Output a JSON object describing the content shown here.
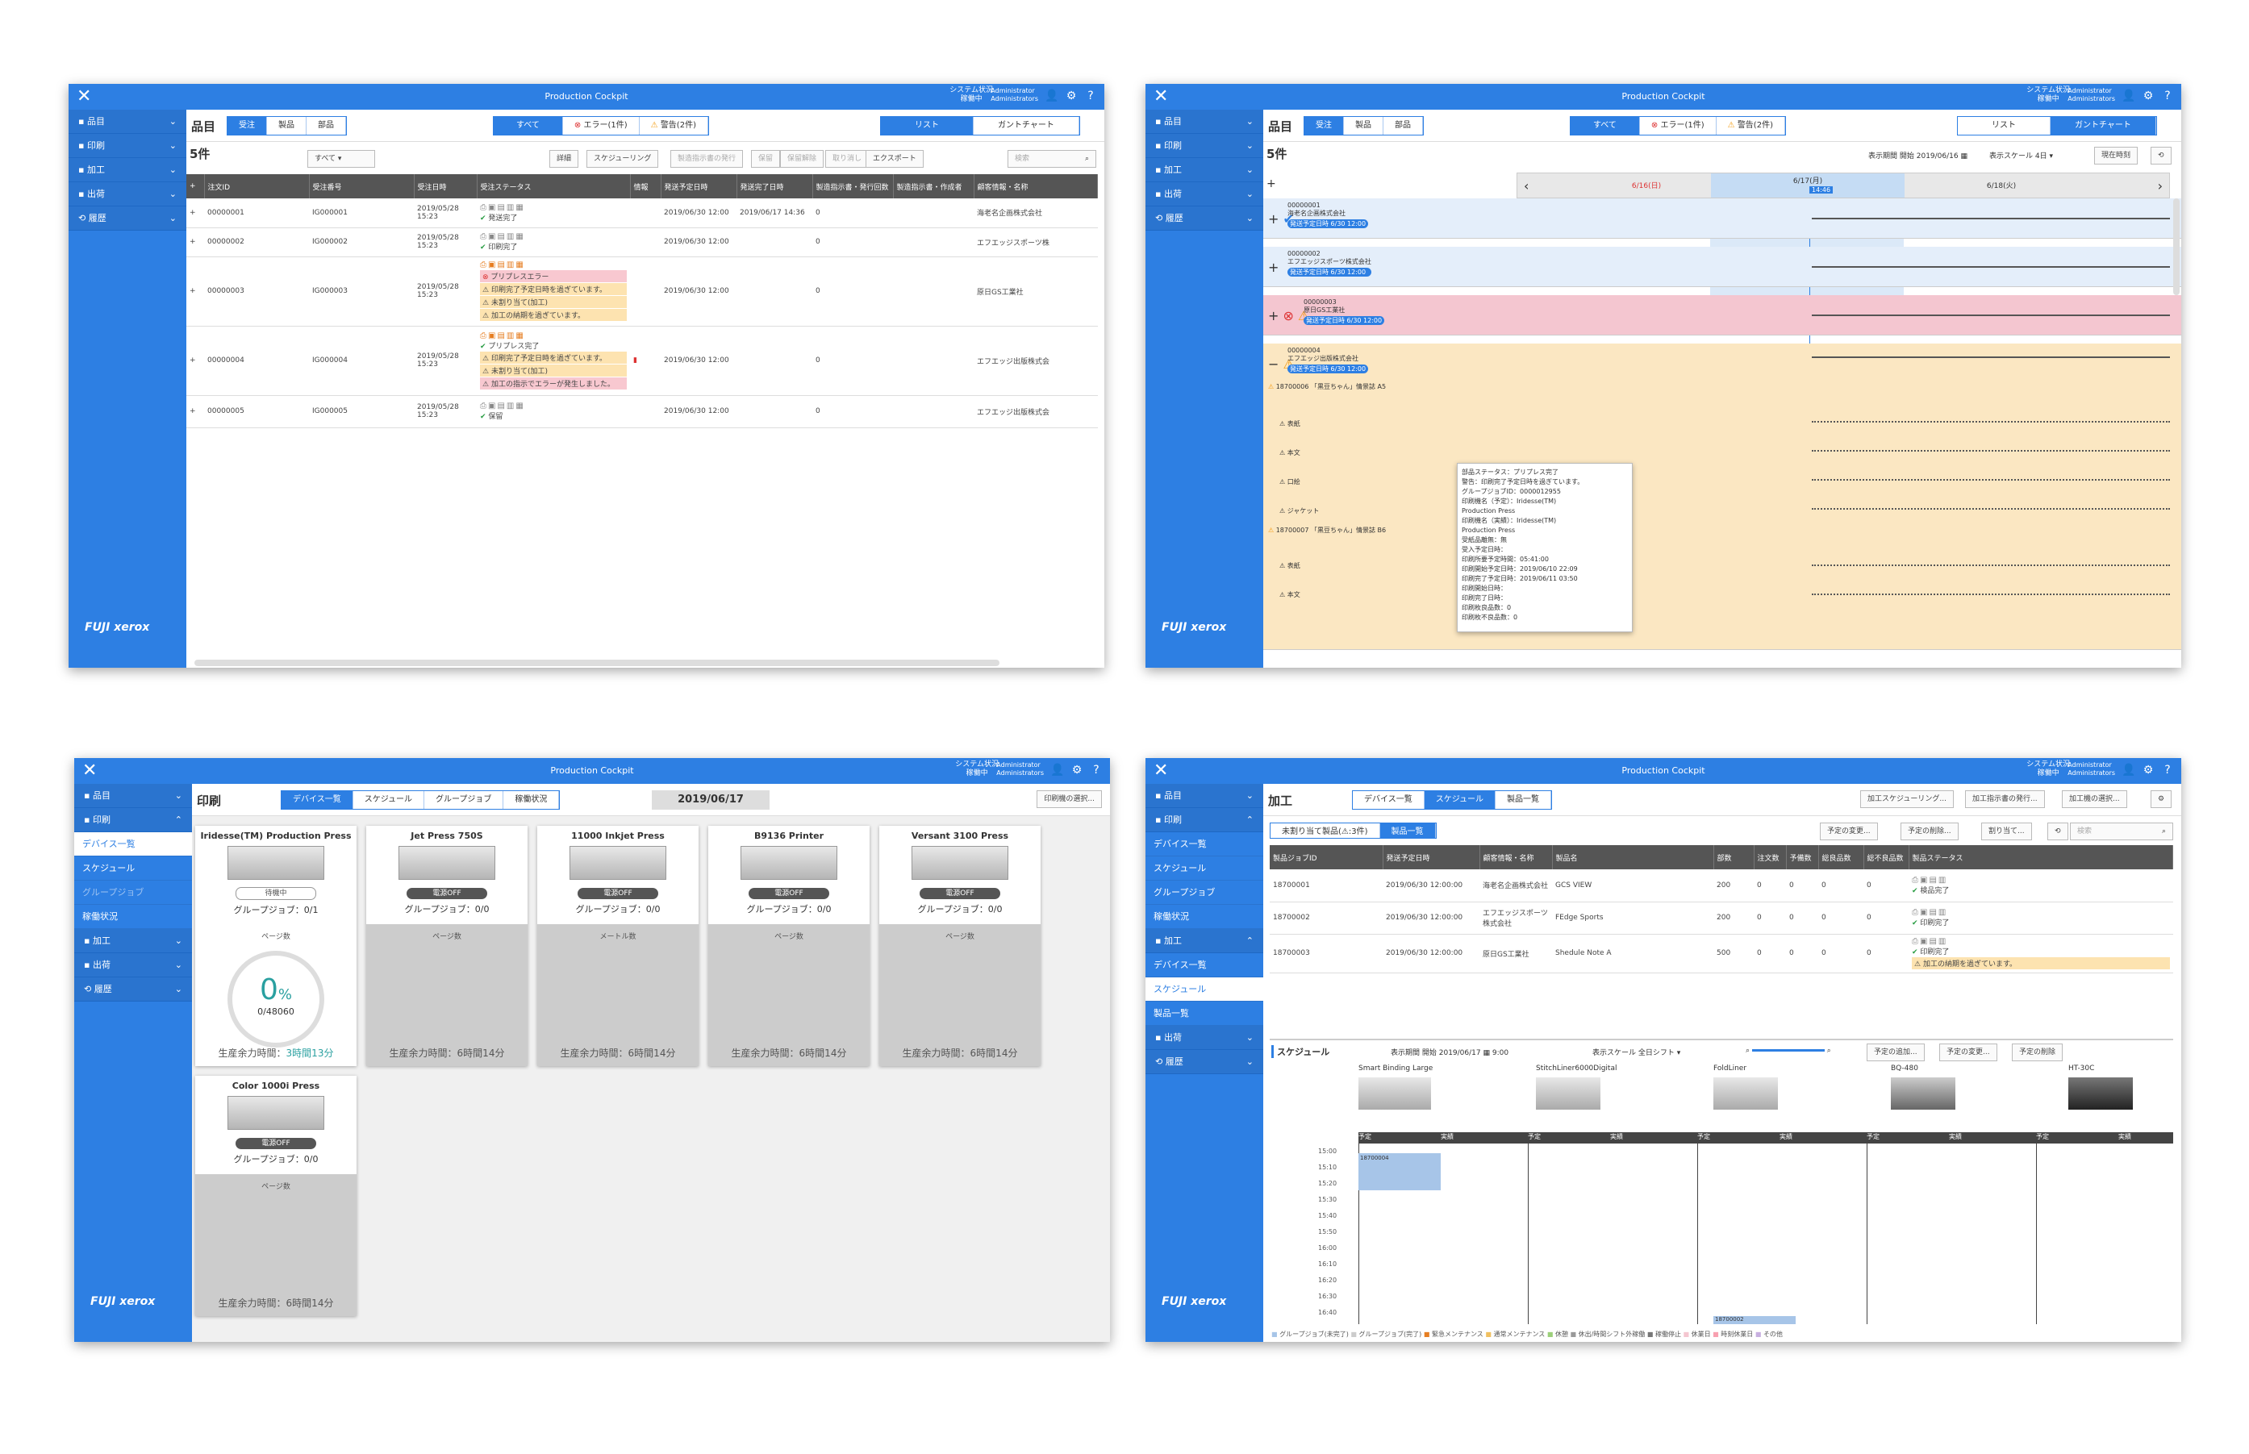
{
  "app": {
    "title": "Production Cockpit",
    "sys_status": "システム状況",
    "sys_state": "稼働中",
    "user": "Administrator",
    "role": "Administrators",
    "brand": "FUJI xerox",
    "accent": "#2d7fe3"
  },
  "nav": {
    "items": "品目",
    "print": "印刷",
    "finish": "加工",
    "ship": "出荷",
    "history": "履歴"
  },
  "w1": {
    "title": "品目",
    "tabs": [
      "受注",
      "製品",
      "部品"
    ],
    "filters": [
      "すべて",
      "エラー(1件)",
      "警告(2件)"
    ],
    "views": [
      "リスト",
      "ガントチャート"
    ],
    "count": "5件",
    "select": "すべて",
    "tools": [
      "詳細",
      "スケジューリング",
      "製造指示書の発行",
      "保留",
      "保留解除",
      "取り消し",
      "エクスポート"
    ],
    "search": "検索",
    "cols": [
      "注文ID",
      "受注番号",
      "受注日時",
      "受注ステータス",
      "情報",
      "発送予定日時",
      "発送完了日時",
      "製造指示書・発行回数",
      "製造指示書・作成者",
      "顧客情報・名称"
    ],
    "rows": [
      {
        "id": "00000001",
        "no": "IG000001",
        "date": "2019/05/28 15:23",
        "st": [
          "発送完了"
        ],
        "ship": "2019/06/30 12:00",
        "done": "2019/06/17 14:36",
        "cnt": "0",
        "cust": "海老名企画株式会社"
      },
      {
        "id": "00000002",
        "no": "IG000002",
        "date": "2019/05/28 15:23",
        "st": [
          "印刷完了"
        ],
        "ship": "2019/06/30 12:00",
        "done": "",
        "cnt": "0",
        "cust": "エフエッジスポーツ株"
      },
      {
        "id": "00000003",
        "no": "IG000003",
        "date": "2019/05/28 15:23",
        "st": [
          "プリプレスエラー",
          "印刷完了予定日時を過ぎています。",
          "未割り当て(加工)",
          "加工の納期を過ぎています。"
        ],
        "ship": "2019/06/30 12:00",
        "done": "",
        "cnt": "0",
        "cust": "原日GS工業社"
      },
      {
        "id": "00000004",
        "no": "IG000004",
        "date": "2019/05/28 15:23",
        "st": [
          "プリプレス完了",
          "印刷完了予定日時を過ぎています。",
          "未割り当て(加工)",
          "加工の指示でエラーが発生しました。"
        ],
        "ship": "2019/06/30 12:00",
        "done": "",
        "cnt": "0",
        "cust": "エフエッジ出版株式会"
      },
      {
        "id": "00000005",
        "no": "IG000005",
        "date": "2019/05/28 15:23",
        "st": [
          "保留"
        ],
        "ship": "2019/06/30 12:00",
        "done": "",
        "cnt": "0",
        "cust": "エフエッジ出版株式会"
      }
    ]
  },
  "w2": {
    "title": "品目",
    "count": "5件",
    "period_label": "表示期間 開始",
    "period": "2019/06/16",
    "scale_label": "表示スケール",
    "scale": "4日",
    "now_btn": "現在時刻",
    "days": [
      "6/16(日)",
      "6/17(月)",
      "6/18(火)"
    ],
    "now": "14:46",
    "orders": [
      {
        "id": "00000001",
        "cust": "海老名企画株式会社",
        "due": "発送予定日時 6/30 12:00"
      },
      {
        "id": "00000002",
        "cust": "エフエッジスポーツ株式会社",
        "due": "発送予定日時 6/30 12:00"
      },
      {
        "id": "00000003",
        "cust": "原日GS工業社",
        "due": "発送予定日時 6/30 12:00"
      },
      {
        "id": "00000004",
        "cust": "エフエッジ出版株式会社",
        "due": "発送予定日時 6/30 12:00"
      }
    ],
    "products": [
      "18700006 「黒豆ちゃん」情景誌 A5",
      "18700007 「黒豆ちゃん」情景誌 B6"
    ],
    "parts": [
      "表紙",
      "本文",
      "口絵",
      "ジャケット",
      "表紙",
      "本文"
    ],
    "tooltip": [
      "部品ステータス：プリプレス完了",
      "警告：印刷完了予定日時を過ぎています。",
      "グループジョブID：0000012955",
      "印刷機名（予定）：Iridesse(TM)",
      "Production Press",
      "印刷機名（実績）：Iridesse(TM)",
      "Production Press",
      "受紙品離無：無",
      "受入予定日時：",
      "印刷所要予定時間：05:41:00",
      "印刷開始予定日時：2019/06/10 22:09",
      "印刷完了予定日時：2019/06/11 03:50",
      "印刷開始日時：",
      "印刷完了日時：",
      "印刷枚良品数：0",
      "印刷枚不良品数：0"
    ]
  },
  "w3": {
    "title": "印刷",
    "tabs": [
      "デバイス一覧",
      "スケジュール",
      "グループジョブ",
      "稼働状況"
    ],
    "date": "2019/06/17",
    "select_btn": "印刷機の選択...",
    "subnav": [
      "デバイス一覧",
      "スケジュール",
      "グループジョブ",
      "稼働状況"
    ],
    "devices": [
      {
        "name": "Iridesse(TM) Production Press",
        "state": "待機中",
        "group": "グループジョブ：0/1",
        "metric": "ページ数",
        "pct": "0",
        "unit": "%",
        "frac": "0/48060",
        "rem_label": "生産余力時間：",
        "rem": "3時間13分"
      },
      {
        "name": "Jet Press 750S",
        "state": "電源OFF",
        "group": "グループジョブ：0/0",
        "metric": "ページ数",
        "rem_label": "生産余力時間：",
        "rem": "6時間14分"
      },
      {
        "name": "11000 Inkjet Press",
        "state": "電源OFF",
        "group": "グループジョブ：0/0",
        "metric": "メートル数",
        "rem_label": "生産余力時間：",
        "rem": "6時間14分"
      },
      {
        "name": "B9136 Printer",
        "state": "電源OFF",
        "group": "グループジョブ：0/0",
        "metric": "ページ数",
        "rem_label": "生産余力時間：",
        "rem": "6時間14分"
      },
      {
        "name": "Versant 3100 Press",
        "state": "電源OFF",
        "group": "グループジョブ：0/0",
        "metric": "ページ数",
        "rem_label": "生産余力時間：",
        "rem": "6時間14分"
      },
      {
        "name": "Color 1000i Press",
        "state": "電源OFF",
        "group": "グループジョブ：0/0",
        "metric": "ページ数",
        "rem_label": "生産余力時間：",
        "rem": "6時間14分"
      }
    ]
  },
  "w4": {
    "title": "加工",
    "tabs": [
      "デバイス一覧",
      "スケジュール",
      "製品一覧"
    ],
    "btns": [
      "加工スケジューリング...",
      "加工指示書の発行...",
      "加工機の選択..."
    ],
    "subnav_print": [
      "デバイス一覧",
      "スケジュール",
      "グループジョブ",
      "稼働状況"
    ],
    "subnav_fin": [
      "デバイス一覧",
      "スケジュール",
      "製品一覧"
    ],
    "subtabs": [
      "未割り当て製品(⚠:3件)",
      "製品一覧"
    ],
    "tools": [
      "予定の変更...",
      "予定の削除...",
      "割り当て..."
    ],
    "search": "検索",
    "cols": [
      "製品ジョブID",
      "発送予定日時",
      "顧客情報・名称",
      "製品名",
      "部数",
      "注文数",
      "予備数",
      "総良品数",
      "総不良品数",
      "製品ステータス"
    ],
    "rows": [
      {
        "id": "18700001",
        "ship": "2019/06/30 12:00:00",
        "cust": "海老名企画株式会社",
        "name": "GCS VIEW",
        "qty": "200",
        "a": "0",
        "b": "0",
        "c": "0",
        "d": "0",
        "st": [
          "検品完了"
        ]
      },
      {
        "id": "18700002",
        "ship": "2019/06/30 12:00:00",
        "cust": "エフエッジスポーツ株式会社",
        "name": "FEdge Sports",
        "qty": "200",
        "a": "0",
        "b": "0",
        "c": "0",
        "d": "0",
        "st": [
          "印刷完了"
        ]
      },
      {
        "id": "18700003",
        "ship": "2019/06/30 12:00:00",
        "cust": "原日GS工業社",
        "name": "Shedule Note A",
        "qty": "500",
        "a": "0",
        "b": "0",
        "c": "0",
        "d": "0",
        "st": [
          "印刷完了",
          "加工の納期を過ぎています。"
        ]
      }
    ],
    "sched": {
      "title": "スケジュール",
      "start_label": "表示期間 開始",
      "start": "2019/06/17",
      "time": "9:00",
      "scale_label": "表示スケール",
      "scale": "全日シフト",
      "btns": [
        "予定の追加...",
        "予定の変更...",
        "予定の削除"
      ]
    },
    "machines": [
      "Smart Binding Large",
      "StitchLiner6000Digital",
      "FoldLiner",
      "BQ-480",
      "HT-30C"
    ],
    "planned": "予定",
    "actual": "実績",
    "times": [
      "15:00",
      "15:10",
      "15:20",
      "15:30",
      "15:40",
      "15:50",
      "16:00",
      "16:10",
      "16:20",
      "16:30",
      "16:40"
    ],
    "job1": "18700004",
    "job2": "18700002",
    "legend": [
      "グループジョブ(未完了)",
      "グループジョブ(完了)",
      "緊急メンテナンス",
      "通常メンテナンス",
      "休憩",
      "休出/時間シフト外稼働",
      "稼働停止",
      "休業日",
      "時刻休業日",
      "その他"
    ]
  }
}
